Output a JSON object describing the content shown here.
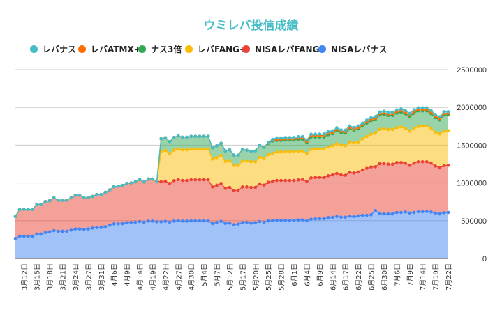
{
  "chart_data": {
    "type": "area",
    "stacked": true,
    "title": "ウミレバ投信成績",
    "title_color": "#46bdc6",
    "legend_position": "top",
    "grid": true,
    "ylim": [
      0,
      2500000
    ],
    "y_ticks": [
      "0",
      "500000",
      "1000000",
      "1500000",
      "2000000",
      "2500000"
    ],
    "x_tick_labels": [
      "3月12日",
      "3月15日",
      "3月18日",
      "3月21日",
      "3月24日",
      "3月27日",
      "3月31日",
      "4月6日",
      "4月9日",
      "4月14日",
      "4月19日",
      "4月22日",
      "4月27日",
      "4月30日",
      "5月4日",
      "5月7日",
      "5月12日",
      "5月17日",
      "5月20日",
      "5月25日",
      "5月28日",
      "6月1日",
      "6月4日",
      "6月9日",
      "6月14日",
      "6月17日",
      "6月22日",
      "6月25日",
      "6月30日",
      "7月6日",
      "7月9日",
      "7月14日",
      "7月19日",
      "7月22日"
    ],
    "series": [
      {
        "name": "NISAレバナス",
        "color": "#4285f4",
        "values": [
          265000,
          295000,
          295000,
          295000,
          295000,
          323000,
          323000,
          344000,
          353000,
          369000,
          360000,
          360000,
          360000,
          375000,
          390000,
          390000,
          385000,
          390000,
          403000,
          409000,
          409000,
          421000,
          440000,
          458000,
          458000,
          461000,
          473000,
          477000,
          480000,
          489000,
          479000,
          495000,
          495000,
          486000,
          486000,
          492000,
          480000,
          495000,
          501000,
          495000,
          495000,
          498000,
          498000,
          498000,
          498000,
          498000,
          461000,
          477000,
          492000,
          464000,
          467000,
          446000,
          455000,
          477000,
          477000,
          467000,
          473000,
          489000,
          480000,
          498000,
          501000,
          505000,
          505000,
          505000,
          505000,
          505000,
          510000,
          510000,
          498000,
          520000,
          523000,
          526000,
          526000,
          541000,
          544000,
          556000,
          547000,
          547000,
          560000,
          556000,
          563000,
          572000,
          572000,
          578000,
          634000,
          593000,
          590000,
          590000,
          590000,
          609000,
          609000,
          615000,
          602000,
          609000,
          618000,
          618000,
          621000,
          615000,
          600000,
          590000,
          606000,
          609000
        ]
      },
      {
        "name": "NISAレバFANG",
        "color": "#ea4335",
        "values": [
          291000,
          354000,
          354000,
          354000,
          354000,
          394000,
          394000,
          410000,
          410000,
          434000,
          412000,
          412000,
          412000,
          428000,
          447000,
          447000,
          420000,
          415000,
          418000,
          437000,
          437000,
          455000,
          467000,
          492000,
          499000,
          505000,
          520000,
          522000,
          535000,
          556000,
          533000,
          557000,
          555000,
          538000,
          529000,
          532000,
          513000,
          535000,
          544000,
          538000,
          538000,
          544000,
          544000,
          544000,
          544000,
          544000,
          486000,
          492000,
          501000,
          464000,
          474000,
          452000,
          449000,
          470000,
          470000,
          474000,
          468000,
          498000,
          491000,
          510000,
          520000,
          528000,
          528000,
          528000,
          528000,
          528000,
          530000,
          535000,
          523000,
          547000,
          550000,
          547000,
          547000,
          554000,
          563000,
          569000,
          560000,
          554000,
          581000,
          576000,
          582000,
          600000,
          621000,
          633000,
          580000,
          662000,
          665000,
          658000,
          658000,
          661000,
          661000,
          646000,
          631000,
          652000,
          662000,
          662000,
          659000,
          646000,
          624000,
          609000,
          624000,
          624000
        ]
      },
      {
        "name": "レバFANG+",
        "color": "#fbbc04",
        "values": [
          0,
          0,
          0,
          0,
          0,
          0,
          0,
          0,
          0,
          0,
          0,
          0,
          0,
          0,
          0,
          0,
          0,
          0,
          0,
          0,
          0,
          0,
          0,
          0,
          0,
          0,
          0,
          0,
          0,
          0,
          0,
          0,
          0,
          0,
          399000,
          406000,
          394000,
          403000,
          406000,
          406000,
          406000,
          406000,
          406000,
          406000,
          406000,
          406000,
          369000,
          366000,
          372000,
          357000,
          357000,
          335000,
          326000,
          344000,
          344000,
          339000,
          339000,
          353000,
          351000,
          369000,
          369000,
          376000,
          376000,
          381000,
          381000,
          381000,
          380000,
          378000,
          369000,
          379000,
          378000,
          378000,
          378000,
          381000,
          385000,
          397000,
          394000,
          391000,
          400000,
          399000,
          396000,
          412000,
          421000,
          434000,
          446000,
          454000,
          461000,
          459000,
          459000,
          462000,
          471000,
          461000,
          452000,
          461000,
          466000,
          473000,
          473000,
          461000,
          446000,
          450000,
          455000,
          458000
        ]
      },
      {
        "name": "ナス3倍",
        "color": "#34a853",
        "values": [
          0,
          0,
          0,
          0,
          0,
          0,
          0,
          0,
          0,
          0,
          0,
          0,
          0,
          0,
          0,
          0,
          0,
          0,
          0,
          0,
          0,
          0,
          0,
          0,
          0,
          0,
          0,
          0,
          0,
          0,
          0,
          0,
          0,
          0,
          170000,
          169000,
          160000,
          169000,
          173000,
          166000,
          166000,
          169000,
          169000,
          169000,
          169000,
          169000,
          148000,
          157000,
          160000,
          138000,
          141000,
          135000,
          138000,
          155000,
          142000,
          138000,
          143000,
          161000,
          148000,
          148000,
          166000,
          153000,
          153000,
          154000,
          154000,
          154000,
          155000,
          154000,
          141000,
          162000,
          157000,
          157000,
          157000,
          163000,
          159000,
          169000,
          162000,
          168000,
          175000,
          164000,
          175000,
          169000,
          179000,
          179000,
          179000,
          191000,
          191000,
          187000,
          187000,
          193000,
          196000,
          194000,
          191000,
          203000,
          207000,
          200000,
          200000,
          194000,
          194000,
          184000,
          215000,
          209000
        ]
      },
      {
        "name": "レバATMX+",
        "color": "#ff6d01",
        "values": [
          0,
          0,
          0,
          0,
          0,
          0,
          0,
          0,
          0,
          0,
          0,
          0,
          0,
          0,
          0,
          0,
          0,
          0,
          0,
          0,
          0,
          0,
          0,
          0,
          0,
          0,
          0,
          0,
          0,
          0,
          0,
          0,
          0,
          0,
          0,
          0,
          0,
          0,
          0,
          0,
          0,
          0,
          0,
          0,
          0,
          0,
          0,
          0,
          0,
          0,
          0,
          0,
          0,
          0,
          0,
          0,
          0,
          0,
          0,
          6000,
          10000,
          16000,
          16000,
          16000,
          16000,
          16000,
          18000,
          18000,
          18000,
          18000,
          18000,
          19000,
          19000,
          19000,
          19000,
          19000,
          19000,
          19000,
          19000,
          19000,
          19000,
          19000,
          19000,
          19000,
          19000,
          19000,
          21000,
          21000,
          21000,
          21000,
          21000,
          21000,
          21000,
          21000,
          21000,
          21000,
          21000,
          21000,
          21000,
          21000,
          21000,
          21000
        ]
      },
      {
        "name": "レバナス",
        "color": "#46bdc6",
        "values": [
          0,
          0,
          0,
          0,
          0,
          0,
          0,
          0,
          0,
          0,
          0,
          0,
          0,
          0,
          0,
          0,
          0,
          0,
          0,
          0,
          0,
          0,
          0,
          0,
          0,
          0,
          0,
          0,
          0,
          0,
          0,
          0,
          0,
          0,
          0,
          0,
          0,
          0,
          0,
          0,
          0,
          0,
          0,
          0,
          0,
          0,
          0,
          0,
          0,
          0,
          0,
          0,
          0,
          0,
          0,
          0,
          0,
          0,
          0,
          7000,
          11000,
          17000,
          17000,
          17000,
          17000,
          17000,
          19000,
          19000,
          19000,
          19000,
          19000,
          20000,
          20000,
          20000,
          20000,
          20000,
          20000,
          20000,
          20000,
          20000,
          20000,
          20000,
          20000,
          20000,
          20000,
          20000,
          22000,
          22000,
          22000,
          22000,
          22000,
          22000,
          22000,
          22000,
          22000,
          22000,
          22000,
          22000,
          22000,
          22000,
          22000,
          22000
        ]
      }
    ],
    "legend_order": [
      "レバナス",
      "レバATMX+",
      "ナス3倍",
      "レバFANG+",
      "NISAレバFANG",
      "NISAレバナス"
    ]
  }
}
